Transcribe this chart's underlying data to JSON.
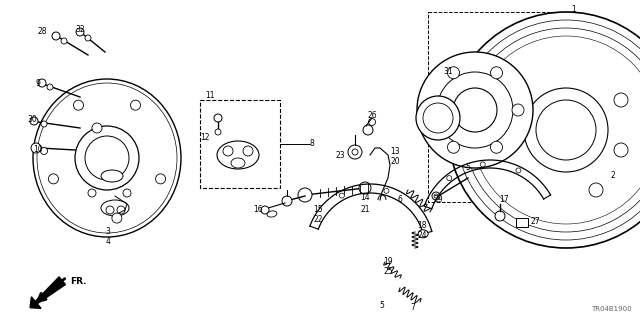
{
  "bg_color": "#ffffff",
  "line_color": "#000000",
  "fig_width": 6.4,
  "fig_height": 3.19,
  "dpi": 100,
  "watermark": "TR04B1900",
  "fr_label": "FR."
}
